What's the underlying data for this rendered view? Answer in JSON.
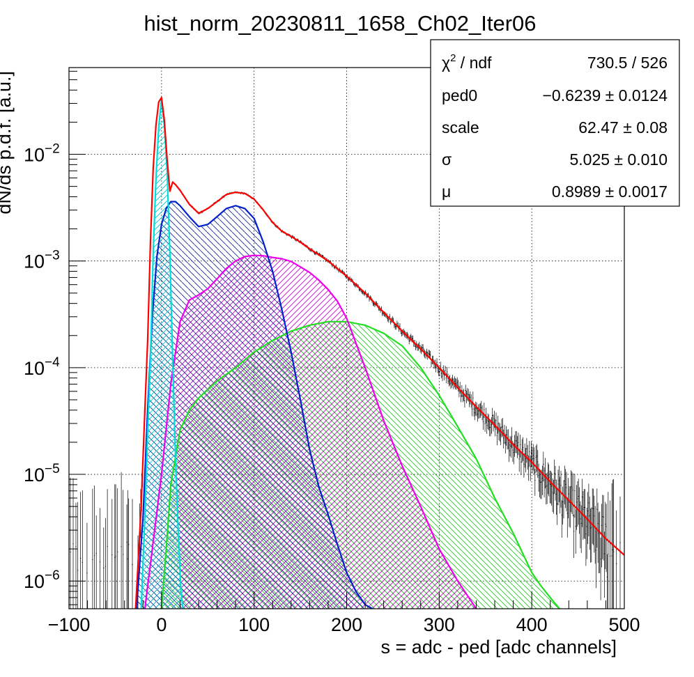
{
  "chart_data": {
    "type": "line",
    "title": "hist_norm_20230811_1658_Ch02_Iter06",
    "xlabel": "s = adc - ped [adc channels]",
    "ylabel": "dN/ds p.d.f. [a.u.]",
    "xlim": [
      -100,
      500
    ],
    "ylim": [
      5.5e-07,
      0.065
    ],
    "yscale": "log",
    "grid": true,
    "x_ticks": [
      "−100",
      "0",
      "100",
      "200",
      "300",
      "400",
      "500"
    ],
    "x_tick_values": [
      -100,
      0,
      100,
      200,
      300,
      400,
      500
    ],
    "y_ticks": [
      {
        "value": 1e-06,
        "base": "10",
        "exp": "−6"
      },
      {
        "value": 1e-05,
        "base": "10",
        "exp": "−5"
      },
      {
        "value": 0.0001,
        "base": "10",
        "exp": "−4"
      },
      {
        "value": 0.001,
        "base": "10",
        "exp": "−3"
      },
      {
        "value": 0.01,
        "base": "10",
        "exp": "−2"
      }
    ],
    "stats_box": {
      "placement": "top-right",
      "rows": [
        {
          "label": "χ",
          "label_sup": "2",
          "label_rest": " / ndf",
          "value": "730.5 / 526"
        },
        {
          "label": "ped0",
          "value": "−0.6239 ± 0.0124"
        },
        {
          "label": "scale",
          "value": "62.47 ± 0.08"
        },
        {
          "label": "σ",
          "value": "5.025 ± 0.010"
        },
        {
          "label": "μ",
          "value": "0.8989 ± 0.0017"
        }
      ]
    },
    "colors": {
      "data": "#000000",
      "total_fit": "#ff0000",
      "pedestal": "#00dddd",
      "one_pe": "#0022cc",
      "two_pe": "#ee00ee",
      "three_pe": "#22dd22",
      "grid": "#000000"
    },
    "series": [
      {
        "key": "pedestal",
        "x": [
          -22,
          -18,
          -15,
          -12,
          -9,
          -6,
          -3,
          0,
          3,
          6,
          9,
          12,
          15,
          18,
          21,
          23
        ],
        "y": [
          5.5e-07,
          4e-06,
          2.5e-05,
          0.00012,
          0.0012,
          0.006,
          0.018,
          0.033,
          0.019,
          0.007,
          0.0012,
          0.00012,
          1.5e-05,
          3e-06,
          8e-07,
          5.5e-07
        ]
      },
      {
        "key": "one_pe",
        "x": [
          -27,
          -20,
          -15,
          -10,
          -5,
          0,
          5,
          10,
          15,
          20,
          30,
          40,
          50,
          60,
          70,
          80,
          90,
          100,
          110,
          120,
          130,
          140,
          150,
          160,
          170,
          180,
          190,
          200,
          210,
          220,
          228
        ],
        "y": [
          5.5e-07,
          4e-06,
          4e-05,
          0.0003,
          0.0011,
          0.0022,
          0.0031,
          0.0036,
          0.0036,
          0.0033,
          0.0026,
          0.0021,
          0.0022,
          0.0026,
          0.0031,
          0.0033,
          0.0031,
          0.0025,
          0.0015,
          0.0008,
          0.00035,
          0.00014,
          5e-05,
          1.7e-05,
          7.6e-06,
          4.2e-06,
          2.2e-06,
          1.2e-06,
          8e-07,
          6e-07,
          5.5e-07
        ]
      },
      {
        "key": "two_pe",
        "x": [
          -18,
          -10,
          0,
          10,
          20,
          30,
          40,
          50,
          60,
          70,
          80,
          90,
          100,
          110,
          120,
          130,
          140,
          150,
          160,
          170,
          180,
          190,
          200,
          210,
          220,
          240,
          260,
          280,
          300,
          320,
          340
        ],
        "y": [
          5.5e-07,
          2e-06,
          1e-05,
          7e-05,
          0.00027,
          0.00043,
          0.00048,
          0.00055,
          0.00068,
          0.00085,
          0.001,
          0.0011,
          0.00113,
          0.00112,
          0.00108,
          0.00105,
          0.00099,
          0.00088,
          0.00078,
          0.00066,
          0.00054,
          0.00042,
          0.00029,
          0.00017,
          0.0001,
          3.2e-05,
          1.2e-05,
          5e-06,
          2e-06,
          1e-06,
          5.5e-07
        ]
      },
      {
        "key": "three_pe",
        "x": [
          0,
          5,
          10,
          20,
          30,
          40,
          60,
          80,
          100,
          120,
          140,
          160,
          180,
          200,
          220,
          240,
          260,
          280,
          300,
          320,
          340,
          360,
          380,
          400,
          410,
          420,
          430
        ],
        "y": [
          5.5e-07,
          2e-06,
          8e-06,
          2.6e-05,
          4e-05,
          5.2e-05,
          7.5e-05,
          0.0001,
          0.00014,
          0.00018,
          0.00022,
          0.00025,
          0.00027,
          0.00027,
          0.00025,
          0.00021,
          0.00016,
          0.0001,
          5.5e-05,
          2.8e-05,
          1.4e-05,
          6e-06,
          2.8e-06,
          1.2e-06,
          9e-07,
          7e-07,
          5.5e-07
        ]
      },
      {
        "key": "total_fit",
        "x": [
          -28,
          -22,
          -18,
          -15,
          -12,
          -9,
          -6,
          -3,
          0,
          3,
          6,
          9,
          12,
          15,
          20,
          30,
          40,
          50,
          60,
          70,
          80,
          90,
          100,
          110,
          120,
          130,
          140,
          150,
          160,
          180,
          200,
          220,
          240,
          260,
          280,
          300,
          320,
          340,
          360,
          380,
          400,
          420,
          440,
          460,
          480,
          500
        ],
        "y": [
          5.5e-07,
          5e-06,
          4e-05,
          0.00018,
          0.0015,
          0.0075,
          0.019,
          0.031,
          0.034,
          0.021,
          0.009,
          0.0045,
          0.0055,
          0.0052,
          0.0046,
          0.0034,
          0.0028,
          0.0031,
          0.0036,
          0.0042,
          0.0044,
          0.0043,
          0.0038,
          0.003,
          0.0023,
          0.0019,
          0.0017,
          0.0015,
          0.0013,
          0.001,
          0.00072,
          0.0005,
          0.00033,
          0.00022,
          0.00015,
          0.0001,
          6.5e-05,
          4.3e-05,
          2.9e-05,
          1.9e-05,
          1.3e-05,
          8.5e-06,
          5.7e-06,
          3.8e-06,
          2.5e-06,
          1.75e-06
        ]
      }
    ]
  }
}
